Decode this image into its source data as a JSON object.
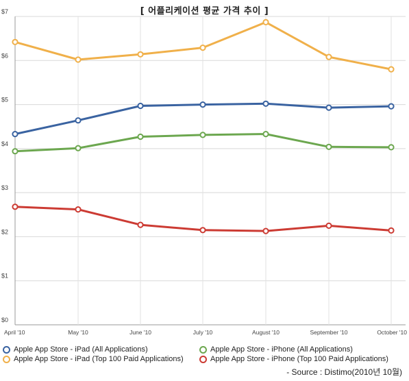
{
  "title": "[ 어플리케이션 평균 가격 추이 ]",
  "source": "- Source : Distimo(2010년 10월)",
  "chart_data": {
    "type": "line",
    "categories": [
      "April '10",
      "May '10",
      "June '10",
      "July '10",
      "August '10",
      "September '10",
      "October '10"
    ],
    "y_ticks": [
      "$0",
      "$1",
      "$2",
      "$3",
      "$4",
      "$5",
      "$6",
      "$7"
    ],
    "ylim": [
      0,
      7
    ],
    "grid": true,
    "legend_position": "bottom",
    "series": [
      {
        "name": "Apple App Store - iPad (All Applications)",
        "color": "#3a63a1",
        "values": [
          4.33,
          4.64,
          4.97,
          5.0,
          5.02,
          4.93,
          4.96
        ]
      },
      {
        "name": "Apple App Store - iPhone (All Applications)",
        "color": "#6ca74f",
        "values": [
          3.94,
          4.01,
          4.27,
          4.31,
          4.33,
          4.04,
          4.03
        ]
      },
      {
        "name": "Apple App Store - iPad (Top 100 Paid Applications)",
        "color": "#f0b04a",
        "values": [
          6.42,
          6.02,
          6.14,
          6.29,
          6.87,
          6.08,
          5.8
        ]
      },
      {
        "name": "Apple App Store - iPhone (Top 100 Paid Applications)",
        "color": "#cc3b33",
        "values": [
          2.68,
          2.62,
          2.27,
          2.15,
          2.13,
          2.25,
          2.14
        ]
      }
    ]
  }
}
